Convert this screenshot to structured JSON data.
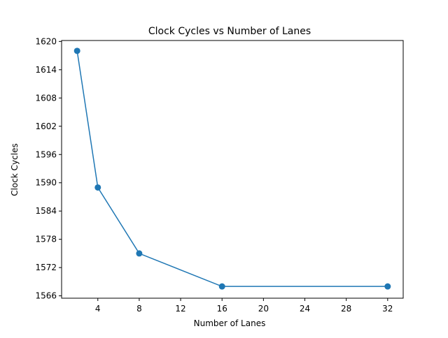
{
  "chart_data": {
    "type": "line",
    "title": "Clock Cycles vs Number of Lanes",
    "xlabel": "Number of Lanes",
    "ylabel": "Clock Cycles",
    "x_ticks": [
      4,
      8,
      12,
      16,
      20,
      24,
      28,
      32
    ],
    "y_ticks": [
      1566,
      1572,
      1578,
      1584,
      1590,
      1596,
      1602,
      1608,
      1614,
      1620
    ],
    "xlim": [
      0.5,
      33.5
    ],
    "ylim": [
      1565.5,
      1620.2
    ],
    "grid": false,
    "series": [
      {
        "x": [
          2,
          4,
          8,
          16,
          32
        ],
        "values": [
          1618,
          1589,
          1575,
          1568,
          1568
        ],
        "color": "#1f77b4",
        "marker": "circle"
      }
    ]
  }
}
